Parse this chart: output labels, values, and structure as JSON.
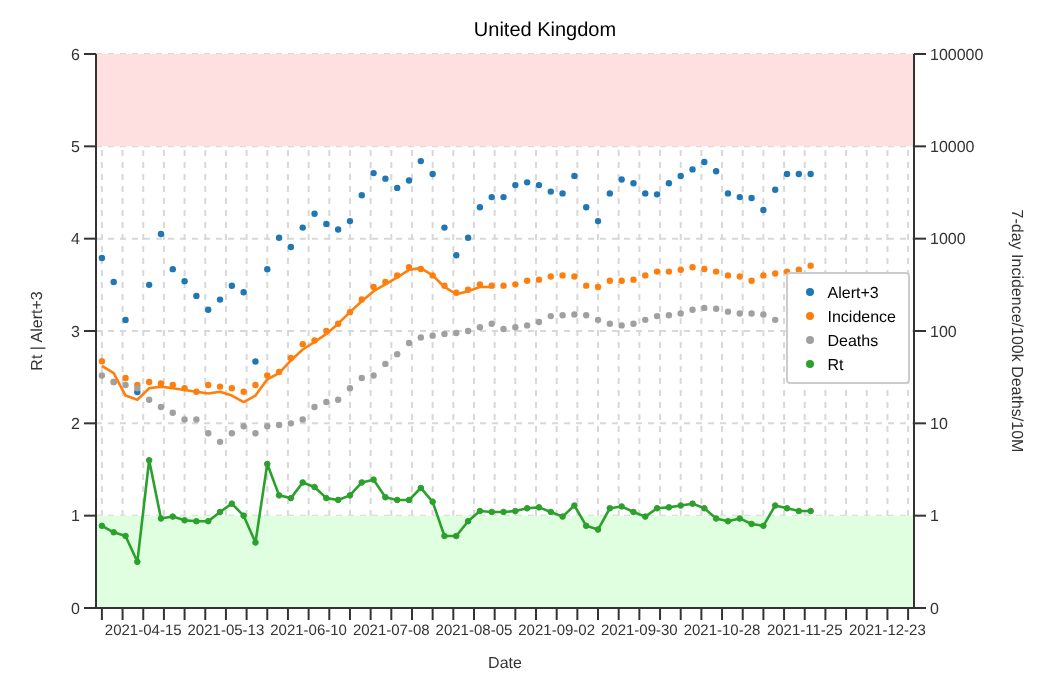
{
  "chart_data": {
    "type": "scatter",
    "title": "United Kingdom",
    "xlabel": "Date",
    "ylabel": "Rt | Alert+3",
    "y2label": "7-day Incidence/100k Deaths/10M",
    "x": [
      "2021-04-01",
      "2021-04-05",
      "2021-04-09",
      "2021-04-13",
      "2021-04-17",
      "2021-04-21",
      "2021-04-25",
      "2021-04-29",
      "2021-05-03",
      "2021-05-07",
      "2021-05-11",
      "2021-05-15",
      "2021-05-19",
      "2021-05-23",
      "2021-05-27",
      "2021-05-31",
      "2021-06-04",
      "2021-06-08",
      "2021-06-12",
      "2021-06-16",
      "2021-06-20",
      "2021-06-24",
      "2021-06-28",
      "2021-07-02",
      "2021-07-06",
      "2021-07-10",
      "2021-07-14",
      "2021-07-18",
      "2021-07-22",
      "2021-07-26",
      "2021-07-30",
      "2021-08-03",
      "2021-08-07",
      "2021-08-11",
      "2021-08-15",
      "2021-08-19",
      "2021-08-23",
      "2021-08-27",
      "2021-08-31",
      "2021-09-04",
      "2021-09-08",
      "2021-09-12",
      "2021-09-16",
      "2021-09-20",
      "2021-09-24",
      "2021-09-28",
      "2021-10-02",
      "2021-10-06",
      "2021-10-10",
      "2021-10-14",
      "2021-10-18",
      "2021-10-22",
      "2021-10-26",
      "2021-10-30",
      "2021-11-03",
      "2021-11-07",
      "2021-11-11",
      "2021-11-15",
      "2021-11-19",
      "2021-11-23",
      "2021-11-27"
    ],
    "series": [
      {
        "name": "Alert+3",
        "color": "#1f77b4",
        "values": [
          3.79,
          3.53,
          3.12,
          2.34,
          3.5,
          4.05,
          3.67,
          3.54,
          3.38,
          3.23,
          3.34,
          3.49,
          3.42,
          2.67,
          3.67,
          4.01,
          3.91,
          4.12,
          4.27,
          4.16,
          4.1,
          4.19,
          4.47,
          4.71,
          4.65,
          4.55,
          4.63,
          4.84,
          4.7,
          4.12,
          3.82,
          4.01,
          4.34,
          4.45,
          4.45,
          4.58,
          4.61,
          4.58,
          4.51,
          4.49,
          4.68,
          4.34,
          4.19,
          4.49,
          4.64,
          4.6,
          4.49,
          4.48,
          4.6,
          4.68,
          4.75,
          4.83,
          4.73,
          4.49,
          4.45,
          4.44,
          4.31,
          4.53,
          4.7,
          4.7,
          4.7
        ]
      },
      {
        "name": "Incidence",
        "axis": "y2",
        "color": "#ff7f0e",
        "values": [
          47,
          28,
          31,
          26,
          28,
          27,
          26,
          24,
          22,
          26,
          25,
          24,
          22,
          26,
          33,
          36,
          51,
          72,
          79,
          100,
          120,
          160,
          220,
          300,
          340,
          400,
          490,
          470,
          400,
          310,
          260,
          280,
          320,
          310,
          310,
          320,
          350,
          360,
          390,
          400,
          390,
          310,
          300,
          350,
          350,
          360,
          400,
          440,
          440,
          460,
          490,
          470,
          440,
          400,
          390,
          350,
          400,
          420,
          440,
          460,
          510
        ]
      },
      {
        "type": "line",
        "axis": "y2",
        "marker": "none",
        "color": "#ff7f0e",
        "values": [
          42,
          35,
          20,
          18,
          24,
          25,
          24,
          23,
          22,
          21,
          22,
          20,
          17,
          20,
          30,
          35,
          48,
          63,
          76,
          93,
          120,
          160,
          210,
          270,
          320,
          380,
          460,
          480,
          400,
          300,
          250,
          270,
          300,
          300,
          null,
          null,
          null,
          null,
          null,
          null,
          null,
          null,
          null,
          null,
          null,
          null,
          null,
          null,
          null,
          null,
          null,
          null,
          null,
          null,
          null,
          null,
          null,
          null,
          null,
          null,
          null
        ]
      },
      {
        "name": "Deaths",
        "axis": "y2",
        "color": "#a0a0a0",
        "values": [
          33,
          28,
          26,
          24,
          18,
          15,
          13,
          11,
          11,
          7.8,
          6.3,
          7.8,
          9.3,
          7.8,
          9.3,
          9.6,
          10,
          11,
          15,
          17,
          18,
          24,
          31,
          33,
          44,
          56,
          74,
          85,
          89,
          93,
          95,
          100,
          110,
          120,
          105,
          110,
          115,
          125,
          145,
          148,
          151,
          148,
          132,
          120,
          115,
          120,
          132,
          145,
          148,
          155,
          170,
          178,
          174,
          162,
          155,
          155,
          151,
          132,
          null,
          null,
          null
        ]
      },
      {
        "name": "Rt",
        "type": "line",
        "marker": "circle",
        "color": "#2ca02c",
        "values": [
          0.89,
          0.82,
          0.78,
          0.5,
          1.6,
          0.97,
          0.99,
          0.95,
          0.94,
          0.94,
          1.04,
          1.13,
          1.0,
          0.71,
          1.56,
          1.22,
          1.19,
          1.36,
          1.31,
          1.19,
          1.17,
          1.22,
          1.36,
          1.39,
          1.2,
          1.17,
          1.17,
          1.3,
          1.15,
          0.78,
          0.78,
          0.94,
          1.05,
          1.04,
          1.04,
          1.05,
          1.08,
          1.09,
          1.04,
          0.99,
          1.11,
          0.89,
          0.85,
          1.08,
          1.1,
          1.04,
          0.99,
          1.08,
          1.09,
          1.11,
          1.13,
          1.08,
          0.97,
          0.94,
          0.97,
          0.91,
          0.89,
          1.11,
          1.08,
          1.05,
          1.05
        ]
      }
    ],
    "marker": "circle",
    "xlim": [
      "2021-03-30",
      "2022-01-01"
    ],
    "xticks": [
      {
        "value": "2021-04-01",
        "label": null
      },
      {
        "value": "2021-04-08",
        "label": null
      },
      "2021-04-15",
      {
        "value": "2021-04-22",
        "label": null
      },
      {
        "value": "2021-04-29",
        "label": null
      },
      {
        "value": "2021-05-06",
        "label": null
      },
      "2021-05-13",
      {
        "value": "2021-05-20",
        "label": null
      },
      {
        "value": "2021-05-27",
        "label": null
      },
      {
        "value": "2021-06-03",
        "label": null
      },
      "2021-06-10",
      {
        "value": "2021-06-17",
        "label": null
      },
      {
        "value": "2021-06-24",
        "label": null
      },
      {
        "value": "2021-07-01",
        "label": null
      },
      "2021-07-08",
      {
        "value": "2021-07-15",
        "label": null
      },
      {
        "value": "2021-07-22",
        "label": null
      },
      {
        "value": "2021-07-29",
        "label": null
      },
      "2021-08-05",
      {
        "value": "2021-08-12",
        "label": null
      },
      {
        "value": "2021-08-19",
        "label": null
      },
      {
        "value": "2021-08-26",
        "label": null
      },
      "2021-09-02",
      {
        "value": "2021-09-09",
        "label": null
      },
      {
        "value": "2021-09-16",
        "label": null
      },
      {
        "value": "2021-09-23",
        "label": null
      },
      "2021-09-30",
      {
        "value": "2021-10-07",
        "label": null
      },
      {
        "value": "2021-10-14",
        "label": null
      },
      {
        "value": "2021-10-21",
        "label": null
      },
      "2021-10-28",
      {
        "value": "2021-11-04",
        "label": null
      },
      {
        "value": "2021-11-11",
        "label": null
      },
      {
        "value": "2021-11-18",
        "label": null
      },
      "2021-11-25",
      {
        "value": "2021-12-02",
        "label": null
      },
      {
        "value": "2021-12-09",
        "label": null
      },
      {
        "value": "2021-12-16",
        "label": null
      },
      "2021-12-23",
      {
        "value": "2021-12-30",
        "label": null
      }
    ],
    "ylim": [
      0,
      6
    ],
    "yticks": [
      0,
      1,
      2,
      3,
      4,
      5,
      6
    ],
    "y2lim": [
      0.1,
      100000
    ],
    "y2ticks": [
      {
        "value": 0.1,
        "label": "0"
      },
      1,
      10,
      100,
      1000,
      10000,
      100000
    ],
    "log": "y2",
    "bands": [
      {
        "axis": "y",
        "from": 5,
        "to": 6,
        "color": "#ffe0e0"
      },
      {
        "axis": "y",
        "from": 0,
        "to": 1,
        "color": "#e0ffe0"
      }
    ],
    "grid": true,
    "legend": "right"
  }
}
